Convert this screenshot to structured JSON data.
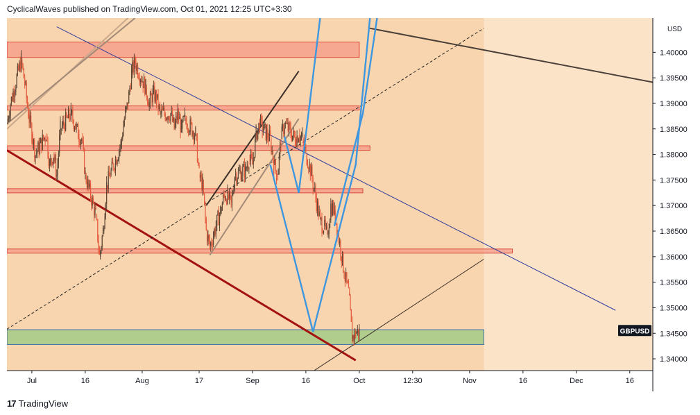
{
  "header": {
    "published": "CyclicalWaves published on TradingView.com, Oct 01, 2021 12:25 UTC+3:30"
  },
  "footer": {
    "brand": "TradingView",
    "logo_icon": "tradingview-logo-icon"
  },
  "colors": {
    "plot_bg": "#fbe3c8",
    "highlight_bg": "#f8d5ae",
    "resistance_zone": "#f58b7c",
    "support_zone": "#9dca86",
    "trend_red": "#a31111",
    "trend_blue": "#2e3a9f",
    "wave_blue": "#3d96e0",
    "candle_up": "#5d4636",
    "candle_down": "#e35a3d"
  },
  "chart_data": {
    "type": "candlestick",
    "symbol": "GBPUSD",
    "currency": "USD",
    "x_ticks": [
      "Jul",
      "16",
      "Aug",
      "17",
      "Sep",
      "16",
      "Oct",
      "12:30",
      "Nov",
      "16",
      "Dec",
      "16"
    ],
    "y_ticks": [
      "1.40000",
      "1.39500",
      "1.39000",
      "1.38500",
      "1.38000",
      "1.37500",
      "1.37000",
      "1.36500",
      "1.36000",
      "1.35500",
      "1.35000",
      "1.34500",
      "1.34000"
    ],
    "ylim": [
      1.3377,
      1.4067
    ],
    "current_price_label": "GBPUSD",
    "current_price": 1.3454,
    "price_path": [
      [
        "2021-06-24",
        1.386
      ],
      [
        "2021-06-25",
        1.39
      ],
      [
        "2021-06-28",
        1.3985
      ],
      [
        "2021-06-29",
        1.394
      ],
      [
        "2021-06-30",
        1.388
      ],
      [
        "2021-07-01",
        1.384
      ],
      [
        "2021-07-02",
        1.38
      ],
      [
        "2021-07-05",
        1.384
      ],
      [
        "2021-07-06",
        1.378
      ],
      [
        "2021-07-07",
        1.38
      ],
      [
        "2021-07-08",
        1.376
      ],
      [
        "2021-07-09",
        1.385
      ],
      [
        "2021-07-12",
        1.388
      ],
      [
        "2021-07-13",
        1.386
      ],
      [
        "2021-07-14",
        1.384
      ],
      [
        "2021-07-15",
        1.383
      ],
      [
        "2021-07-16",
        1.376
      ],
      [
        "2021-07-19",
        1.368
      ],
      [
        "2021-07-20",
        1.36
      ],
      [
        "2021-07-21",
        1.365
      ],
      [
        "2021-07-22",
        1.374
      ],
      [
        "2021-07-23",
        1.376
      ],
      [
        "2021-07-26",
        1.382
      ],
      [
        "2021-07-27",
        1.387
      ],
      [
        "2021-07-28",
        1.39
      ],
      [
        "2021-07-29",
        1.396
      ],
      [
        "2021-07-30",
        1.398
      ],
      [
        "2021-08-02",
        1.393
      ],
      [
        "2021-08-03",
        1.39
      ],
      [
        "2021-08-04",
        1.392
      ],
      [
        "2021-08-05",
        1.391
      ],
      [
        "2021-08-06",
        1.388
      ],
      [
        "2021-08-09",
        1.388
      ],
      [
        "2021-08-10",
        1.385
      ],
      [
        "2021-08-11",
        1.388
      ],
      [
        "2021-08-12",
        1.385
      ],
      [
        "2021-08-13",
        1.387
      ],
      [
        "2021-08-16",
        1.384
      ],
      [
        "2021-08-17",
        1.376
      ],
      [
        "2021-08-18",
        1.374
      ],
      [
        "2021-08-19",
        1.365
      ],
      [
        "2021-08-20",
        1.362
      ],
      [
        "2021-08-23",
        1.369
      ],
      [
        "2021-08-24",
        1.372
      ],
      [
        "2021-08-25",
        1.372
      ],
      [
        "2021-08-26",
        1.37
      ],
      [
        "2021-08-27",
        1.376
      ],
      [
        "2021-08-30",
        1.377
      ],
      [
        "2021-08-31",
        1.379
      ],
      [
        "2021-09-01",
        1.378
      ],
      [
        "2021-09-02",
        1.384
      ],
      [
        "2021-09-03",
        1.386
      ],
      [
        "2021-09-06",
        1.383
      ],
      [
        "2021-09-07",
        1.378
      ],
      [
        "2021-09-08",
        1.376
      ],
      [
        "2021-09-09",
        1.383
      ],
      [
        "2021-09-10",
        1.386
      ],
      [
        "2021-09-13",
        1.383
      ],
      [
        "2021-09-14",
        1.384
      ],
      [
        "2021-09-15",
        1.383
      ],
      [
        "2021-09-16",
        1.38
      ],
      [
        "2021-09-17",
        1.378
      ],
      [
        "2021-09-20",
        1.367
      ],
      [
        "2021-09-21",
        1.366
      ],
      [
        "2021-09-22",
        1.364
      ],
      [
        "2021-09-23",
        1.37
      ],
      [
        "2021-09-24",
        1.369
      ],
      [
        "2021-09-27",
        1.356
      ],
      [
        "2021-09-28",
        1.353
      ],
      [
        "2021-09-29",
        1.344
      ],
      [
        "2021-09-30",
        1.345
      ],
      [
        "2021-10-01",
        1.3454
      ]
    ],
    "horizontal_zones": [
      {
        "kind": "resistance",
        "top": 1.402,
        "bottom": 1.399,
        "start": "2021-06-24",
        "end": "2021-10-01"
      },
      {
        "kind": "resistance",
        "top": 1.3895,
        "bottom": 1.3887,
        "start": "2021-06-24",
        "end": "2021-10-01"
      },
      {
        "kind": "resistance",
        "top": 1.3817,
        "bottom": 1.3808,
        "start": "2021-06-24",
        "end": "2021-10-04"
      },
      {
        "kind": "resistance",
        "top": 1.3733,
        "bottom": 1.3725,
        "start": "2021-06-24",
        "end": "2021-10-02"
      },
      {
        "kind": "resistance",
        "top": 1.3615,
        "bottom": 1.3607,
        "start": "2021-06-24",
        "end": "2021-11-13"
      },
      {
        "kind": "support",
        "top": 1.3457,
        "bottom": 1.3428,
        "start": "2021-06-24",
        "end": "2021-11-05"
      }
    ],
    "trend_lines": [
      {
        "style": "thick-red",
        "from": [
          "2021-06-24",
          1.3808
        ],
        "to": [
          "2021-09-30",
          1.3397
        ]
      },
      {
        "style": "blue-thin",
        "from": [
          "2021-07-08",
          1.405
        ],
        "to": [
          "2021-12-12",
          1.3495
        ]
      },
      {
        "style": "dark-thin",
        "from": [
          "2021-10-04",
          1.4047
        ],
        "to": [
          "2021-12-31",
          1.393
        ]
      },
      {
        "style": "dashed",
        "from": [
          "2021-06-24",
          1.3458
        ],
        "to": [
          "2021-11-05",
          1.4047
        ]
      },
      {
        "style": "brown-thin",
        "from": [
          "2021-09-17",
          1.3371
        ],
        "to": [
          "2021-11-05",
          1.3595
        ]
      },
      {
        "style": "channel-dark",
        "from": [
          "2021-08-19",
          1.37
        ],
        "to": [
          "2021-09-14",
          1.3963
        ]
      },
      {
        "style": "channel-tan",
        "from": [
          "2021-08-20",
          1.3603
        ],
        "to": [
          "2021-09-14",
          1.387
        ]
      },
      {
        "style": "channel-light",
        "from": [
          "2021-06-24",
          1.385
        ],
        "to": [
          "2021-07-28",
          1.4067
        ]
      },
      {
        "style": "channel-tan",
        "from": [
          "2021-06-24",
          1.386
        ],
        "to": [
          "2021-07-30",
          1.4067
        ]
      }
    ],
    "wave_path": [
      [
        "2021-09-06",
        1.378
      ],
      [
        "2021-09-18",
        1.3453
      ],
      [
        "2021-09-30",
        1.378
      ],
      [
        "2021-10-04",
        1.4067
      ]
    ],
    "wave_path_2": [
      [
        "2021-09-10",
        1.3835
      ],
      [
        "2021-09-14",
        1.3725
      ],
      [
        "2021-09-20",
        1.4067
      ]
    ],
    "wave_path_3": [
      [
        "2021-09-24",
        1.366
      ],
      [
        "2021-10-02",
        1.388
      ],
      [
        "2021-10-06",
        1.4067
      ]
    ]
  }
}
